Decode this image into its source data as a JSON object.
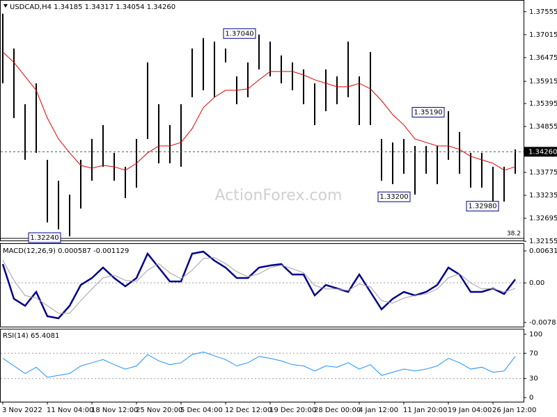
{
  "chart_data": [
    {
      "type": "hilo",
      "title": "USDCAD,H4 1.34185 1.34317 1.34054 1.34260",
      "watermark": "ActionForex.com",
      "color": "#000000",
      "high": [
        1.37506,
        1.36688,
        1.35379,
        1.3587,
        1.3407,
        1.33579,
        1.33252,
        1.3407,
        1.34561,
        1.34888,
        1.34234,
        1.33907,
        1.34561,
        1.36361,
        1.35379,
        1.34888,
        1.35379,
        1.36688,
        1.36933,
        1.36851,
        1.36688,
        1.36033,
        1.36361,
        1.37015,
        1.36851,
        1.36524,
        1.36361,
        1.36197,
        1.3587,
        1.36197,
        1.36033,
        1.36851,
        1.36033,
        1.36606,
        1.34561,
        1.34479,
        1.34561,
        1.34397,
        1.34397,
        1.34397,
        1.35215,
        1.34725,
        1.34234,
        1.34234,
        1.33907,
        1.33907,
        1.34316
      ],
      "low": [
        1.3587,
        1.35052,
        1.3407,
        1.34234,
        1.32598,
        1.32434,
        1.32271,
        1.32925,
        1.33579,
        1.33907,
        1.33579,
        1.3317,
        1.33416,
        1.34561,
        1.33988,
        1.33988,
        1.33907,
        1.35543,
        1.35706,
        1.35543,
        1.36361,
        1.35379,
        1.35543,
        1.36197,
        1.36033,
        1.3587,
        1.35706,
        1.35379,
        1.34888,
        1.35215,
        1.35379,
        1.35543,
        1.34888,
        1.34888,
        1.33579,
        1.33498,
        1.33743,
        1.33252,
        1.33743,
        1.33498,
        1.3407,
        1.33743,
        1.33416,
        1.33416,
        1.33089,
        1.33089,
        1.33743
      ],
      "series": [
        {
          "color": "#e00000",
          "values": [
            1.36606,
            1.36361,
            1.36033,
            1.35706,
            1.35052,
            1.34561,
            1.34234,
            1.33939,
            1.33874,
            1.33939,
            1.33907,
            1.33825,
            1.33988,
            1.34234,
            1.34397,
            1.34397,
            1.34479,
            1.34806,
            1.35297,
            1.35543,
            1.35706,
            1.35706,
            1.35739,
            1.35952,
            1.36148,
            1.36148,
            1.36148,
            1.36066,
            1.35952,
            1.3587,
            1.35788,
            1.35788,
            1.3587,
            1.35739,
            1.35461,
            1.35134,
            1.34888,
            1.34561,
            1.34479,
            1.34397,
            1.34397,
            1.34316,
            1.34152,
            1.3407,
            1.33988,
            1.33825,
            1.33907
          ]
        }
      ],
      "annotations": [
        {
          "value": 1.3704,
          "label": "1.37040"
        },
        {
          "value": 1.3519,
          "label": "1.35190"
        },
        {
          "value": 1.332,
          "label": "1.33200"
        },
        {
          "value": 1.3298,
          "label": "1.32980"
        },
        {
          "value": 1.3224,
          "label": "1.32240"
        }
      ],
      "last": {
        "value": 1.3426,
        "label": "1.34260"
      },
      "fib_level": {
        "price": 1.32222,
        "label": "38.2"
      },
      "ylim": [
        1.3219,
        1.3778
      ],
      "yticks": [
        1.37555,
        1.37015,
        1.36475,
        1.35915,
        1.35395,
        1.34855,
        1.33775,
        1.33235,
        1.32695,
        1.32155
      ]
    },
    {
      "type": "line",
      "title": "MACD(12,26,9) 0.000587 -0.001129",
      "series": [
        {
          "color": "#00008b",
          "values": [
            0.003708,
            -0.00315,
            -0.00452,
            -0.00178,
            -0.00658,
            -0.00699,
            -0.00452,
            -0.00041,
            0.00096,
            0.00302,
            0.00096,
            -0.00068,
            0.00096,
            0.00577,
            0.00302,
            0.00028,
            0.00028,
            0.00577,
            0.00618,
            0.00439,
            0.00302,
            0.00096,
            0.00096,
            0.00302,
            0.00343,
            0.003708,
            0.00165,
            0.00165,
            -0.00247,
            -0.00041,
            -0.00109,
            -0.00178,
            0.00165,
            -0.00178,
            -0.00521,
            -0.00315,
            -0.00178,
            -0.00247,
            -0.00178,
            -0.00041,
            0.00302,
            0.00165,
            -0.00178,
            -0.00178,
            -0.00109,
            -0.00219,
            0.00069
          ]
        },
        {
          "color": "#a0a0a0",
          "values": [
            0.0045,
            0.0005,
            -0.0025,
            -0.003,
            -0.0045,
            -0.006,
            -0.006,
            -0.0035,
            -0.0012,
            0.001,
            0.0015,
            0.0005,
            0.0003,
            0.0025,
            0.0038,
            0.002,
            0.0008,
            0.0025,
            0.0048,
            0.005,
            0.0038,
            0.0022,
            0.0012,
            0.0018,
            0.003,
            0.0035,
            0.0028,
            0.002,
            -0.0005,
            -0.0012,
            -0.0012,
            -0.0015,
            -0.0002,
            -0.0008,
            -0.0035,
            -0.004,
            -0.003,
            -0.0025,
            -0.0022,
            -0.0012,
            0.001,
            0.0018,
            0,
            -0.0012,
            -0.0011,
            -0.0018,
            -0.0011
          ]
        }
      ],
      "ylim": [
        -0.00864,
        0.00755
      ],
      "yticks": [
        0.006315,
        {
          "value": 0,
          "label": "0.00"
        },
        -0.007818
      ]
    },
    {
      "type": "line",
      "title": "RSI(14) 65.4081",
      "series": [
        {
          "color": "#1e90ff",
          "values": [
            62,
            50,
            38,
            48,
            32,
            35,
            38,
            50,
            55,
            60,
            52,
            45,
            50,
            68,
            58,
            52,
            55,
            68,
            72,
            66,
            60,
            50,
            55,
            65,
            62,
            58,
            52,
            50,
            42,
            50,
            48,
            55,
            45,
            52,
            35,
            40,
            45,
            42,
            45,
            50,
            62,
            55,
            45,
            48,
            40,
            42,
            65
          ]
        }
      ],
      "ylim": [
        0,
        100
      ],
      "yticks": [
        100,
        70,
        30,
        0
      ],
      "categories": [
        "3 Nov 2022",
        null,
        null,
        null,
        "11 Nov 04:00",
        null,
        null,
        null,
        "18 Nov 12:00",
        null,
        null,
        null,
        "25 Nov 20:00",
        null,
        null,
        null,
        "5 Dec 04:00",
        null,
        null,
        null,
        "12 Dec 12:00",
        null,
        null,
        null,
        "19 Dec 20:00",
        null,
        null,
        null,
        "28 Dec 00:00",
        null,
        null,
        null,
        "4 Jan 12:00",
        null,
        null,
        null,
        "11 Jan 20:00",
        null,
        null,
        null,
        "19 Jan 04:00",
        null,
        null,
        null,
        "26 Jan 12:00",
        null,
        null
      ]
    }
  ]
}
